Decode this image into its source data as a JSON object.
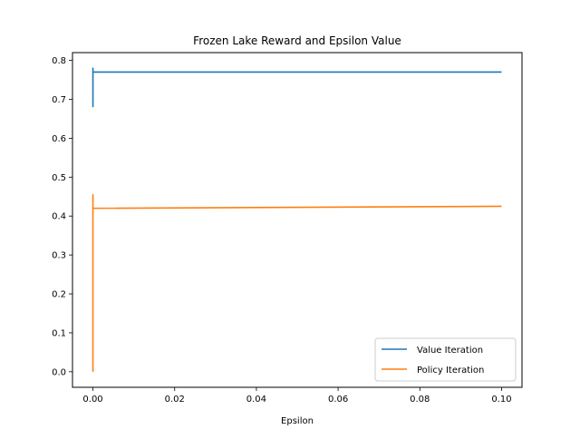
{
  "chart_data": {
    "type": "line",
    "title": "Frozen Lake Reward and Epsilon Value",
    "xlabel": "Epsilon",
    "ylabel": "",
    "xlim": [
      -0.005,
      0.105
    ],
    "ylim": [
      -0.04,
      0.82
    ],
    "x_ticks": [
      0.0,
      0.02,
      0.04,
      0.06,
      0.08,
      0.1
    ],
    "x_tick_labels": [
      "0.00",
      "0.02",
      "0.04",
      "0.06",
      "0.08",
      "0.10"
    ],
    "y_ticks": [
      0.0,
      0.1,
      0.2,
      0.3,
      0.4,
      0.5,
      0.6,
      0.7,
      0.8
    ],
    "y_tick_labels": [
      "0.0",
      "0.1",
      "0.2",
      "0.3",
      "0.4",
      "0.5",
      "0.6",
      "0.7",
      "0.8"
    ],
    "grid": false,
    "legend_position": "lower-right",
    "series": [
      {
        "name": "Value Iteration",
        "color": "#1f77b4",
        "x": [
          0.0,
          0.0,
          0.0,
          0.0,
          0.0,
          0.0,
          0.1
        ],
        "y": [
          0.68,
          0.78,
          0.69,
          0.77,
          0.7,
          0.77,
          0.77
        ]
      },
      {
        "name": "Policy Iteration",
        "color": "#ff7f0e",
        "x": [
          0.0,
          0.0,
          0.0,
          0.0,
          0.0,
          0.0,
          0.0,
          0.1
        ],
        "y": [
          0.0,
          0.455,
          0.42,
          0.45,
          0.42,
          0.445,
          0.42,
          0.425
        ]
      }
    ]
  }
}
